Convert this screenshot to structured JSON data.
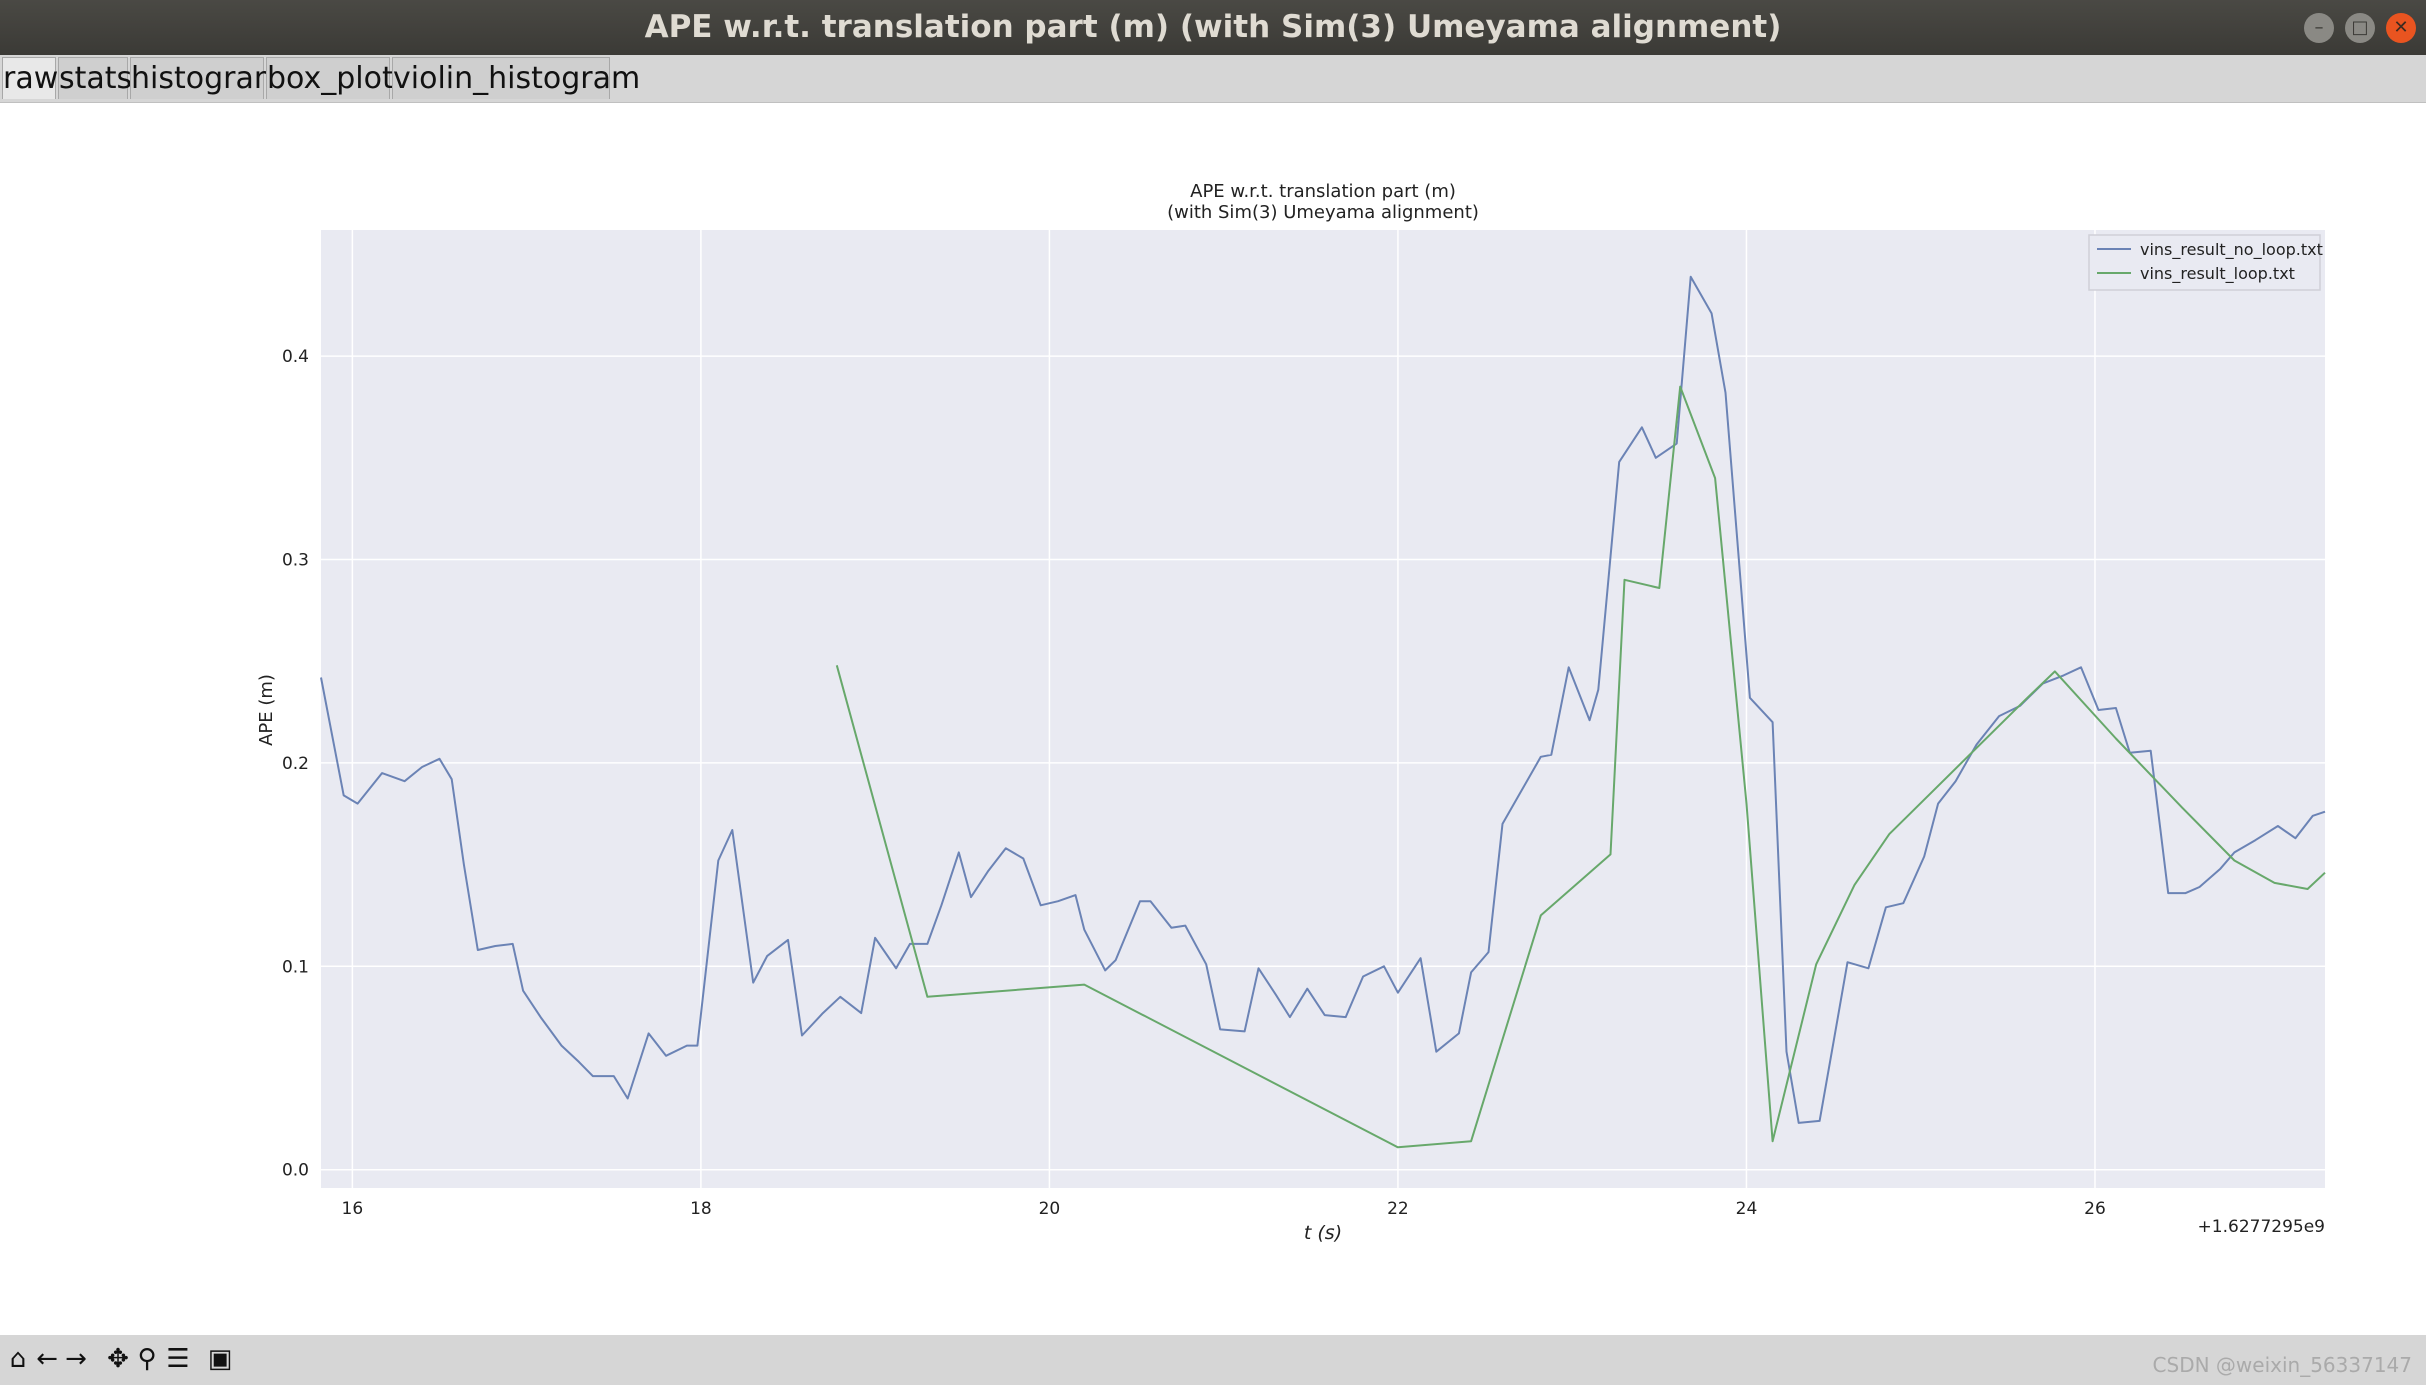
{
  "window": {
    "title": "APE w.r.t. translation part (m) (with Sim(3) Umeyama alignment)",
    "controls": [
      "minimize-icon",
      "maximize-icon",
      "close-icon"
    ]
  },
  "tabs": [
    {
      "label": "raw"
    },
    {
      "label": "stats"
    },
    {
      "label": "histogram"
    },
    {
      "label": "box_plot"
    },
    {
      "label": "violin_histogram"
    }
  ],
  "toolbar": {
    "icons": [
      "home-icon",
      "back-icon",
      "forward-icon",
      "pan-icon",
      "zoom-icon",
      "configure-icon",
      "save-icon"
    ]
  },
  "watermark": "CSDN @weixin_56337147",
  "colors": {
    "plot_bg": "#e9eaf2",
    "grid": "#ffffff",
    "series_no_loop": "#6b83b5",
    "series_loop": "#67a86b"
  },
  "chart_data": {
    "type": "line",
    "title": "APE w.r.t. translation part (m)",
    "subtitle": "(with Sim(3) Umeyama alignment)",
    "xlabel": "t (s)",
    "ylabel": "APE (m)",
    "x_offset_label": "+1.6277295e9",
    "xlim": [
      15.82,
      27.32
    ],
    "ylim": [
      -0.009,
      0.462
    ],
    "xticks": [
      16,
      18,
      20,
      22,
      24,
      26
    ],
    "xtick_labels": [
      "16",
      "18",
      "20",
      "22",
      "24",
      "26"
    ],
    "yticks": [
      0.0,
      0.1,
      0.2,
      0.3,
      0.4
    ],
    "ytick_labels": [
      "0.0",
      "0.1",
      "0.2",
      "0.3",
      "0.4"
    ],
    "grid": true,
    "legend": "top-right",
    "series": [
      {
        "name": "vins_result_no_loop.txt",
        "x": [
          15.82,
          15.95,
          16.03,
          16.17,
          16.3,
          16.4,
          16.5,
          16.57,
          16.64,
          16.72,
          16.82,
          16.92,
          16.98,
          17.08,
          17.2,
          17.3,
          17.38,
          17.5,
          17.58,
          17.7,
          17.8,
          17.92,
          17.98,
          18.1,
          18.18,
          18.3,
          18.38,
          18.5,
          18.58,
          18.7,
          18.8,
          18.92,
          19.0,
          19.12,
          19.2,
          19.3,
          19.38,
          19.48,
          19.55,
          19.65,
          19.75,
          19.85,
          19.95,
          20.05,
          20.15,
          20.2,
          20.32,
          20.38,
          20.52,
          20.58,
          20.7,
          20.78,
          20.9,
          20.98,
          21.12,
          21.2,
          21.3,
          21.38,
          21.48,
          21.58,
          21.7,
          21.8,
          21.92,
          22.0,
          22.13,
          22.22,
          22.35,
          22.42,
          22.52,
          22.6,
          22.7,
          22.82,
          22.88,
          22.98,
          23.1,
          23.15,
          23.27,
          23.4,
          23.48,
          23.6,
          23.68,
          23.8,
          23.88,
          24.02,
          24.15,
          24.23,
          24.3,
          24.42,
          24.5,
          24.58,
          24.7,
          24.8,
          24.9,
          25.02,
          25.1,
          25.2,
          25.32,
          25.45,
          25.57,
          25.7,
          25.82,
          25.92,
          26.02,
          26.12,
          26.2,
          26.32,
          26.42,
          26.52,
          26.6,
          26.72,
          26.8,
          26.92,
          27.05,
          27.15,
          27.25,
          27.32
        ],
        "values": [
          0.242,
          0.184,
          0.18,
          0.195,
          0.191,
          0.198,
          0.202,
          0.192,
          0.15,
          0.108,
          0.11,
          0.111,
          0.088,
          0.075,
          0.061,
          0.053,
          0.046,
          0.046,
          0.035,
          0.067,
          0.056,
          0.061,
          0.061,
          0.152,
          0.167,
          0.092,
          0.105,
          0.113,
          0.066,
          0.077,
          0.085,
          0.077,
          0.114,
          0.099,
          0.111,
          0.111,
          0.13,
          0.156,
          0.134,
          0.147,
          0.158,
          0.153,
          0.13,
          0.132,
          0.135,
          0.118,
          0.098,
          0.103,
          0.132,
          0.132,
          0.119,
          0.12,
          0.101,
          0.069,
          0.068,
          0.099,
          0.086,
          0.075,
          0.089,
          0.076,
          0.075,
          0.095,
          0.1,
          0.087,
          0.104,
          0.058,
          0.067,
          0.097,
          0.107,
          0.17,
          0.185,
          0.203,
          0.204,
          0.247,
          0.221,
          0.236,
          0.348,
          0.365,
          0.35,
          0.357,
          0.439,
          0.421,
          0.382,
          0.232,
          0.22,
          0.058,
          0.023,
          0.024,
          0.063,
          0.102,
          0.099,
          0.129,
          0.131,
          0.154,
          0.18,
          0.191,
          0.209,
          0.223,
          0.228,
          0.239,
          0.243,
          0.247,
          0.226,
          0.227,
          0.205,
          0.206,
          0.136,
          0.136,
          0.139,
          0.148,
          0.156,
          0.162,
          0.169,
          0.163,
          0.174,
          0.176
        ]
      },
      {
        "name": "vins_result_loop.txt",
        "x": [
          18.78,
          19.3,
          20.2,
          22.0,
          22.42,
          22.82,
          23.22,
          23.3,
          23.5,
          23.62,
          23.82,
          24.0,
          24.15,
          24.4,
          24.62,
          24.82,
          25.6,
          25.77,
          26.12,
          26.5,
          26.8,
          27.03,
          27.22,
          27.32
        ],
        "values": [
          0.248,
          0.085,
          0.091,
          0.011,
          0.014,
          0.125,
          0.155,
          0.29,
          0.286,
          0.385,
          0.34,
          0.18,
          0.014,
          0.101,
          0.14,
          0.165,
          0.231,
          0.245,
          0.212,
          0.178,
          0.152,
          0.141,
          0.138,
          0.146
        ]
      }
    ]
  }
}
